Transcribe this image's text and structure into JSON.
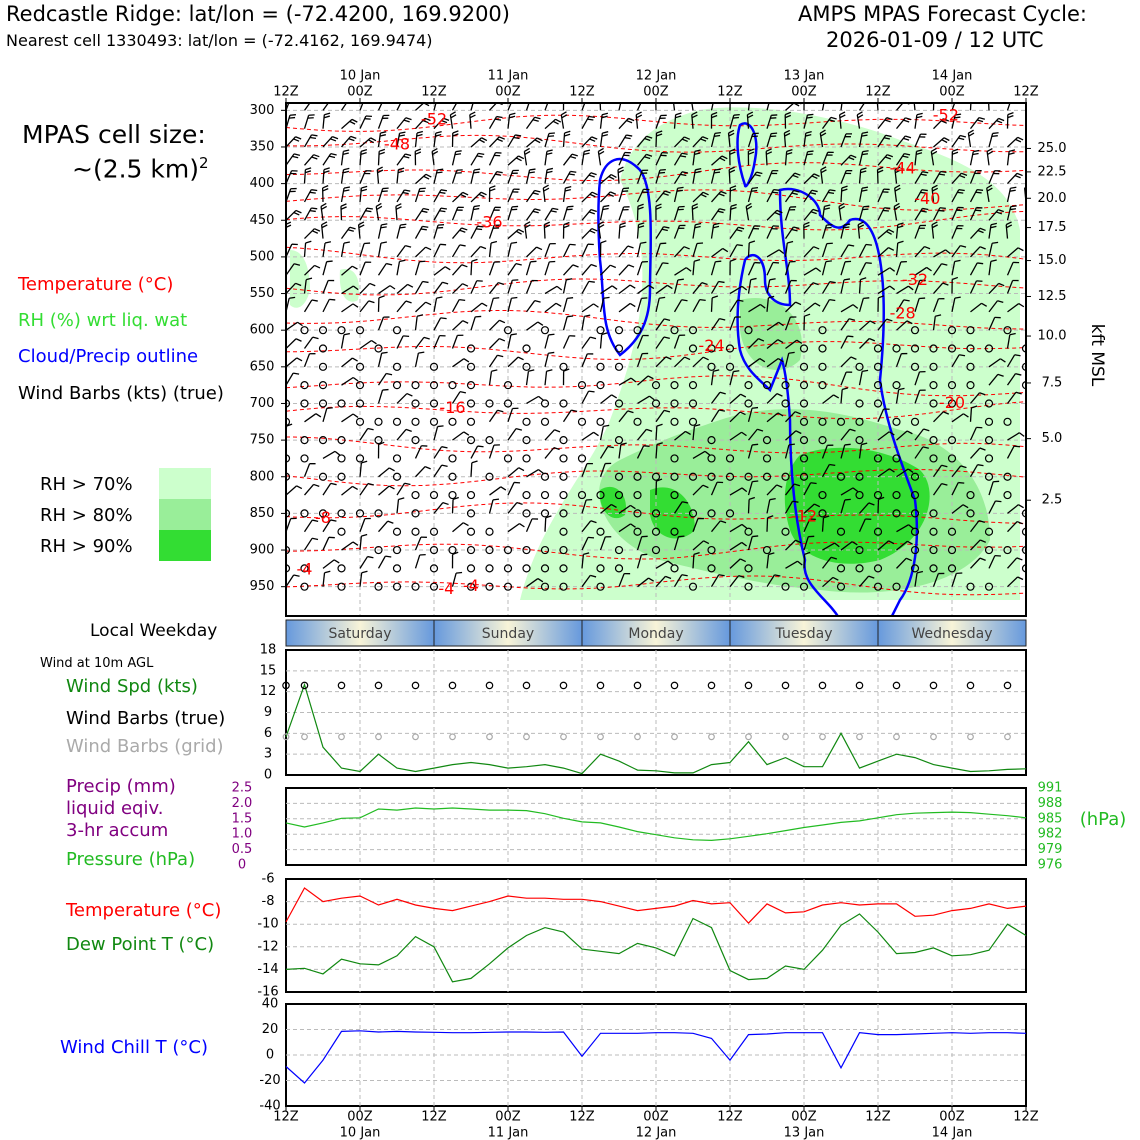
{
  "header": {
    "site_line": "Redcastle Ridge: lat/lon = (-72.4200, 169.9200)",
    "cell_line": "Nearest cell 1330493: lat/lon = (-72.4162, 169.9474)",
    "cycle_title": "AMPS MPAS Forecast Cycle:",
    "cycle_time": "2026-01-09 / 12 UTC"
  },
  "left_panel": {
    "cell_size_label": "MPAS cell size:",
    "cell_size_value": "~(2.5 km)",
    "cell_size_exp": "2",
    "legend_temperature": "Temperature (°C)",
    "legend_rh": "RH (%) wrt liq. wat",
    "legend_cloud": "Cloud/Precip outline",
    "legend_wind": "Wind Barbs (kts) (true)",
    "rh_levels": [
      "RH > 70%",
      "RH > 80%",
      "RH > 90%"
    ],
    "local_weekday": "Local Weekday",
    "wind_10m": "Wind at 10m AGL",
    "wind_spd": "Wind Spd (kts)",
    "wind_barbs_true": "Wind Barbs (true)",
    "wind_barbs_grid": "Wind Barbs (grid)",
    "precip_1": "Precip (mm)",
    "precip_2": "liquid eqiv.",
    "precip_3": "3-hr accum",
    "pressure_label": "Pressure (hPa)",
    "temp_label": "Temperature (°C)",
    "dew_label": "Dew Point T (°C)",
    "wind_chill_label": "Wind Chill T (°C)"
  },
  "colors": {
    "temperature": "#ff0000",
    "rh": "#33dd33",
    "cloud": "#0000ff",
    "pressure": "#22bb22",
    "precip": "#800080",
    "dew": "#118811",
    "grid_barbs": "#aaaaaa",
    "rh70": "#ccffcc",
    "rh80": "#99ee99",
    "rh90": "#33dd33"
  },
  "chart_data": [
    {
      "type": "heatmap",
      "title": "Vertical cross-section (time-height)",
      "x_time_labels": [
        "12Z",
        "00Z",
        "12Z",
        "00Z",
        "12Z",
        "00Z",
        "12Z",
        "00Z",
        "12Z",
        "00Z",
        "12Z"
      ],
      "x_date_labels": [
        "10 Jan",
        "11 Jan",
        "12 Jan",
        "13 Jan",
        "14 Jan"
      ],
      "ylabel_right": "kft MSL",
      "y_pressure_ticks": [
        300,
        350,
        400,
        450,
        500,
        550,
        600,
        650,
        700,
        750,
        800,
        850,
        900,
        950
      ],
      "ylim_hpa": [
        990,
        290
      ],
      "right_kft_ticks": [
        {
          "label": "25.0",
          "hpa": 352
        },
        {
          "label": "22.5",
          "hpa": 384
        },
        {
          "label": "20.0",
          "hpa": 420
        },
        {
          "label": "17.5",
          "hpa": 460
        },
        {
          "label": "15.0",
          "hpa": 505
        },
        {
          "label": "12.5",
          "hpa": 554
        },
        {
          "label": "10.0",
          "hpa": 608
        },
        {
          "label": "7.5",
          "hpa": 672
        },
        {
          "label": "5.0",
          "hpa": 748
        },
        {
          "label": "2.5",
          "hpa": 832
        }
      ],
      "temperature_labels": [
        {
          "text": "-52",
          "t": 24,
          "hpa": 313
        },
        {
          "text": "-48",
          "t": 18,
          "hpa": 347
        },
        {
          "text": "-36",
          "t": 33,
          "hpa": 454
        },
        {
          "text": "-16",
          "t": 27,
          "hpa": 707
        },
        {
          "text": "-8",
          "t": 6,
          "hpa": 857
        },
        {
          "text": "-4",
          "t": 3,
          "hpa": 927
        },
        {
          "text": "-4",
          "t": 26,
          "hpa": 954
        },
        {
          "text": "-4",
          "t": 30,
          "hpa": 950
        },
        {
          "text": "-24",
          "t": 69,
          "hpa": 622
        },
        {
          "text": "-12",
          "t": 84,
          "hpa": 855
        },
        {
          "text": "-52",
          "t": 107,
          "hpa": 308
        },
        {
          "text": "-44",
          "t": 100,
          "hpa": 380
        },
        {
          "text": "-40",
          "t": 104,
          "hpa": 422
        },
        {
          "text": "-32",
          "t": 102,
          "hpa": 532
        },
        {
          "text": "-28",
          "t": 100,
          "hpa": 578
        },
        {
          "text": "-20",
          "t": 108,
          "hpa": 700
        }
      ],
      "rh_legend": [
        "RH > 70%",
        "RH > 80%",
        "RH > 90%"
      ],
      "weekday_labels": [
        "Saturday",
        "Sunday",
        "Monday",
        "Tuesday",
        "Wednesday"
      ]
    },
    {
      "type": "line",
      "title": "Wind at 10m AGL",
      "ylabel": "Wind Spd (kts)",
      "y_ticks": [
        0,
        3,
        6,
        9,
        12,
        15,
        18
      ],
      "ylim": [
        0,
        18
      ],
      "x_hours": [
        0,
        3,
        6,
        9,
        12,
        15,
        18,
        21,
        24,
        27,
        30,
        33,
        36,
        39,
        42,
        45,
        48,
        51,
        54,
        57,
        60,
        63,
        66,
        69,
        72,
        75,
        78,
        81,
        84,
        87,
        90,
        93,
        96,
        99,
        102,
        105,
        108,
        111,
        114,
        117,
        120
      ],
      "wind_speed": [
        5.5,
        13,
        4,
        1,
        0.5,
        3,
        1,
        0.5,
        1,
        1.5,
        1.8,
        1.5,
        1,
        1.2,
        1.5,
        1,
        0.2,
        3,
        2,
        0.7,
        0.6,
        0.3,
        0.3,
        1.5,
        1.8,
        4.8,
        1.5,
        2.5,
        1.2,
        1.2,
        6,
        1,
        2,
        3,
        2.5,
        1.5,
        1,
        0.5,
        0.6,
        0.8,
        0.9
      ]
    },
    {
      "type": "line",
      "title": "Precip and Pressure",
      "precip_ticks": [
        "2.5",
        "2.0",
        "1.5",
        "1.0",
        "0.5",
        "0"
      ],
      "precip_ylim": [
        0,
        2.5
      ],
      "pressure_ticks": [
        "991",
        "988",
        "985",
        "982",
        "979",
        "976"
      ],
      "pressure_ylim": [
        976,
        991
      ],
      "ylabel_right": "(hPa)",
      "x_hours": [
        0,
        3,
        6,
        9,
        12,
        15,
        18,
        21,
        24,
        27,
        30,
        33,
        36,
        39,
        42,
        45,
        48,
        51,
        54,
        57,
        60,
        63,
        66,
        69,
        72,
        75,
        78,
        81,
        84,
        87,
        90,
        93,
        96,
        99,
        102,
        105,
        108,
        111,
        114,
        117,
        120
      ],
      "pressure": [
        984.2,
        983.4,
        984.2,
        985.1,
        985.2,
        986.9,
        986.7,
        987.1,
        986.9,
        987.1,
        986.9,
        986.7,
        986.7,
        986.6,
        986.0,
        985.1,
        984.4,
        984.2,
        983.4,
        982.5,
        981.9,
        981.3,
        980.9,
        980.8,
        981.1,
        981.6,
        982.1,
        982.7,
        983.3,
        983.8,
        984.3,
        984.6,
        985.2,
        985.8,
        986.1,
        986.2,
        986.3,
        986.2,
        985.9,
        985.6,
        985.2
      ],
      "precip": []
    },
    {
      "type": "line",
      "title": "Temperature and Dew Point",
      "y_ticks": [
        -6,
        -8,
        -10,
        -12,
        -14,
        -16
      ],
      "ylim": [
        -16,
        -6
      ],
      "x_hours": [
        0,
        3,
        6,
        9,
        12,
        15,
        18,
        21,
        24,
        27,
        30,
        33,
        36,
        39,
        42,
        45,
        48,
        51,
        54,
        57,
        60,
        63,
        66,
        69,
        72,
        75,
        78,
        81,
        84,
        87,
        90,
        93,
        96,
        99,
        102,
        105,
        108,
        111,
        114,
        117,
        120
      ],
      "series": [
        {
          "name": "Temperature (°C)",
          "values": [
            -9.8,
            -6.8,
            -8,
            -7.7,
            -7.5,
            -8.3,
            -7.8,
            -8.3,
            -8.6,
            -8.8,
            -8.4,
            -8,
            -7.5,
            -7.7,
            -7.7,
            -7.8,
            -7.8,
            -8,
            -8.4,
            -8.8,
            -8.6,
            -8.4,
            -7.9,
            -8.2,
            -8.1,
            -9.9,
            -8.2,
            -9,
            -8.9,
            -8.3,
            -8.1,
            -8.3,
            -8.2,
            -8.2,
            -9.3,
            -9.2,
            -8.8,
            -8.6,
            -8.2,
            -8.6,
            -8.4
          ]
        },
        {
          "name": "Dew Point T (°C)",
          "values": [
            -14,
            -13.9,
            -14.4,
            -13.1,
            -13.5,
            -13.6,
            -12.8,
            -11.1,
            -12,
            -15.1,
            -14.8,
            -13.5,
            -12.1,
            -11,
            -10.3,
            -10.7,
            -12.2,
            -12.4,
            -12.6,
            -11.7,
            -12.1,
            -12.8,
            -9.5,
            -10.3,
            -14.1,
            -14.9,
            -14.8,
            -13.7,
            -14,
            -12.3,
            -10.1,
            -9.1,
            -10.7,
            -12.6,
            -12.5,
            -12.1,
            -12.8,
            -12.7,
            -12.3,
            -10,
            -11
          ]
        }
      ]
    },
    {
      "type": "line",
      "title": "Wind Chill",
      "ylabel": "Wind Chill T (°C)",
      "y_ticks": [
        40,
        20,
        0,
        -20,
        -40
      ],
      "ylim": [
        -40,
        40
      ],
      "x_hours": [
        0,
        3,
        6,
        9,
        12,
        15,
        18,
        21,
        24,
        27,
        30,
        33,
        36,
        39,
        42,
        45,
        48,
        51,
        54,
        57,
        60,
        63,
        66,
        69,
        72,
        75,
        78,
        81,
        84,
        87,
        90,
        93,
        96,
        99,
        102,
        105,
        108,
        111,
        114,
        117,
        120
      ],
      "wind_chill": [
        -9,
        -22,
        -4,
        18.5,
        19,
        18,
        18.5,
        18,
        17.8,
        17.5,
        17.5,
        17.8,
        18,
        18,
        17.8,
        18,
        -1,
        17,
        17,
        17,
        17.5,
        17.5,
        17,
        13,
        -4,
        16,
        16.5,
        17.5,
        17.5,
        17.5,
        -10,
        17.5,
        16,
        16,
        16.5,
        17,
        17.5,
        17,
        17.5,
        17.5,
        17
      ]
    }
  ]
}
